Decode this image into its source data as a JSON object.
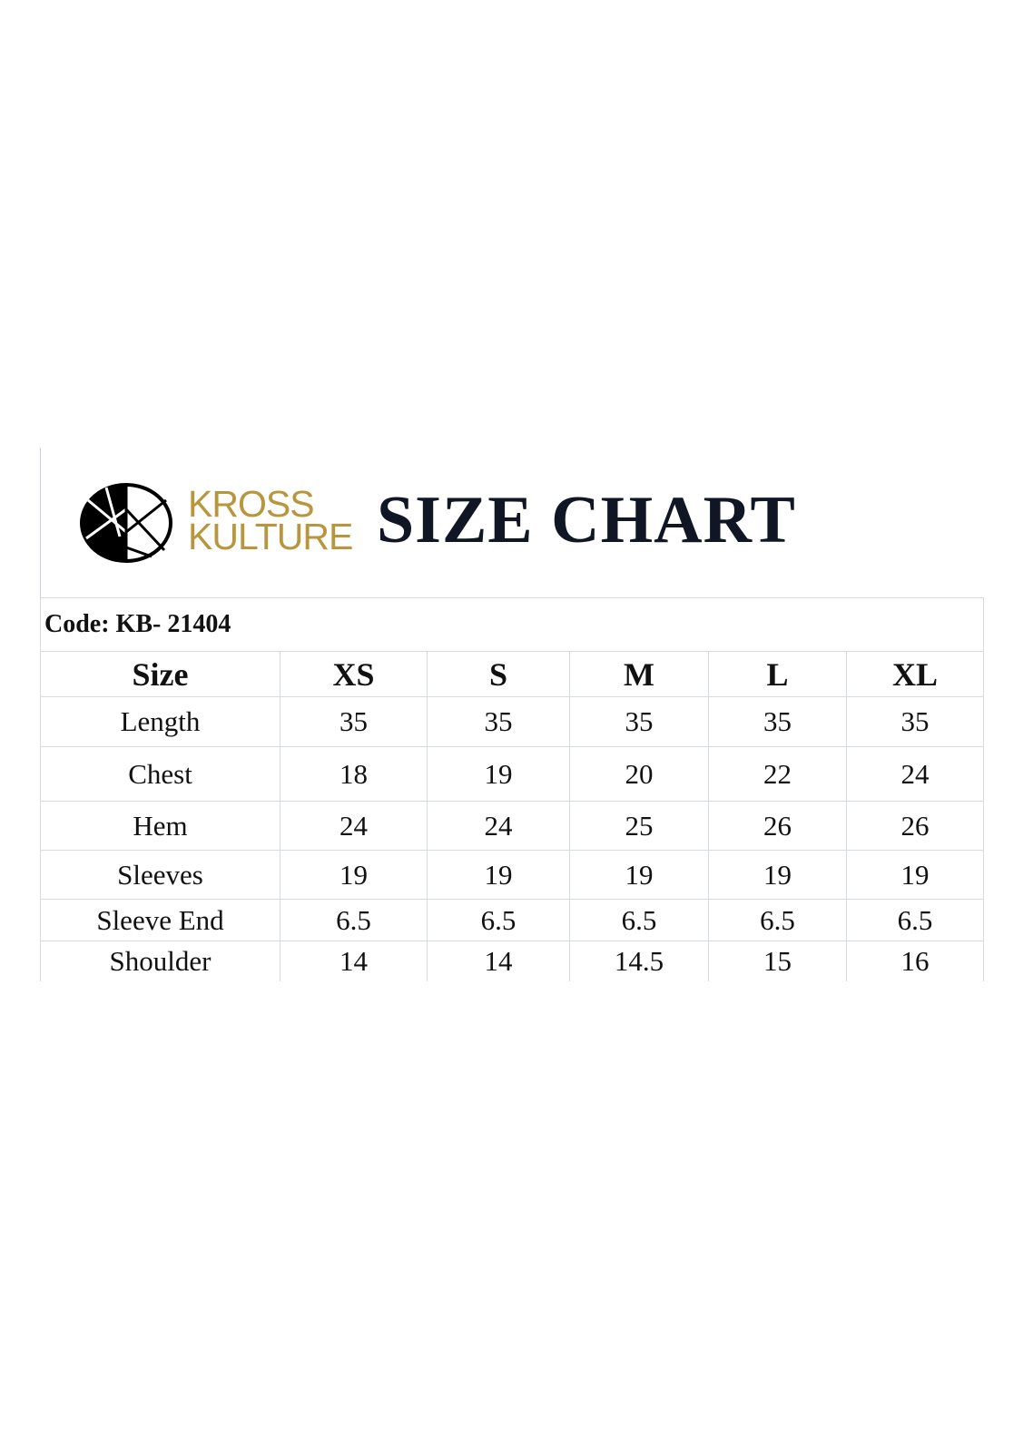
{
  "brand": {
    "line1": "KROSS",
    "line2": "KULTURE",
    "color": "#b8963e",
    "logo_icon": "kross-kulture-circle-logo"
  },
  "title": "SIZE CHART",
  "code": "Code: KB- 21404",
  "table": {
    "headers": [
      "Size",
      "XS",
      "S",
      "M",
      "L",
      "XL"
    ],
    "rows": [
      [
        "Length",
        "35",
        "35",
        "35",
        "35",
        "35"
      ],
      [
        "Chest",
        "18",
        "19",
        "20",
        "22",
        "24"
      ],
      [
        "Hem",
        "24",
        "24",
        "25",
        "26",
        "26"
      ],
      [
        "Sleeves",
        "19",
        "19",
        "19",
        "19",
        "19"
      ],
      [
        "Sleeve End",
        "6.5",
        "6.5",
        "6.5",
        "6.5",
        "6.5"
      ],
      [
        "Shoulder",
        "14",
        "14",
        "14.5",
        "15",
        "16"
      ]
    ]
  }
}
